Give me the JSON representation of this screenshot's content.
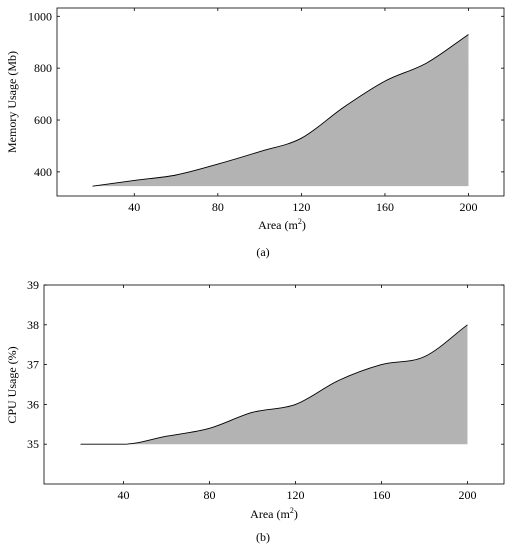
{
  "chart_data": [
    {
      "type": "area",
      "caption": "(a)",
      "xlabel": "Area (m",
      "xlabel_sup": "2",
      "xlabel_end": ")",
      "ylabel": "Memory Usage (Mb)",
      "x": [
        20,
        40,
        60,
        80,
        100,
        120,
        140,
        160,
        180,
        200
      ],
      "values": [
        345,
        367,
        388,
        430,
        478,
        530,
        648,
        750,
        820,
        930
      ],
      "baseline": 345,
      "xlim": [
        3,
        217
      ],
      "ylim": [
        307,
        1032
      ],
      "xticks": [
        40,
        80,
        120,
        160,
        200
      ],
      "yticks": [
        400,
        600,
        800,
        1000
      ],
      "fill_color": "#b3b3b3",
      "line_color": "#000000",
      "grid": false,
      "legend": false
    },
    {
      "type": "area",
      "caption": "(b)",
      "xlabel": "Area (m",
      "xlabel_sup": "2",
      "xlabel_end": ")",
      "ylabel": "CPU Usage (%)",
      "x": [
        20,
        40,
        60,
        80,
        100,
        120,
        140,
        160,
        180,
        200
      ],
      "values": [
        35.0,
        35.0,
        35.2,
        35.4,
        35.8,
        36.0,
        36.6,
        37.0,
        37.2,
        38.0
      ],
      "baseline": 35.0,
      "xlim": [
        3,
        217
      ],
      "ylim": [
        34.0,
        39.0
      ],
      "xticks": [
        40,
        80,
        120,
        160,
        200
      ],
      "yticks": [
        35,
        36,
        37,
        38,
        39
      ],
      "fill_color": "#b3b3b3",
      "line_color": "#000000",
      "grid": false,
      "legend": false
    }
  ]
}
